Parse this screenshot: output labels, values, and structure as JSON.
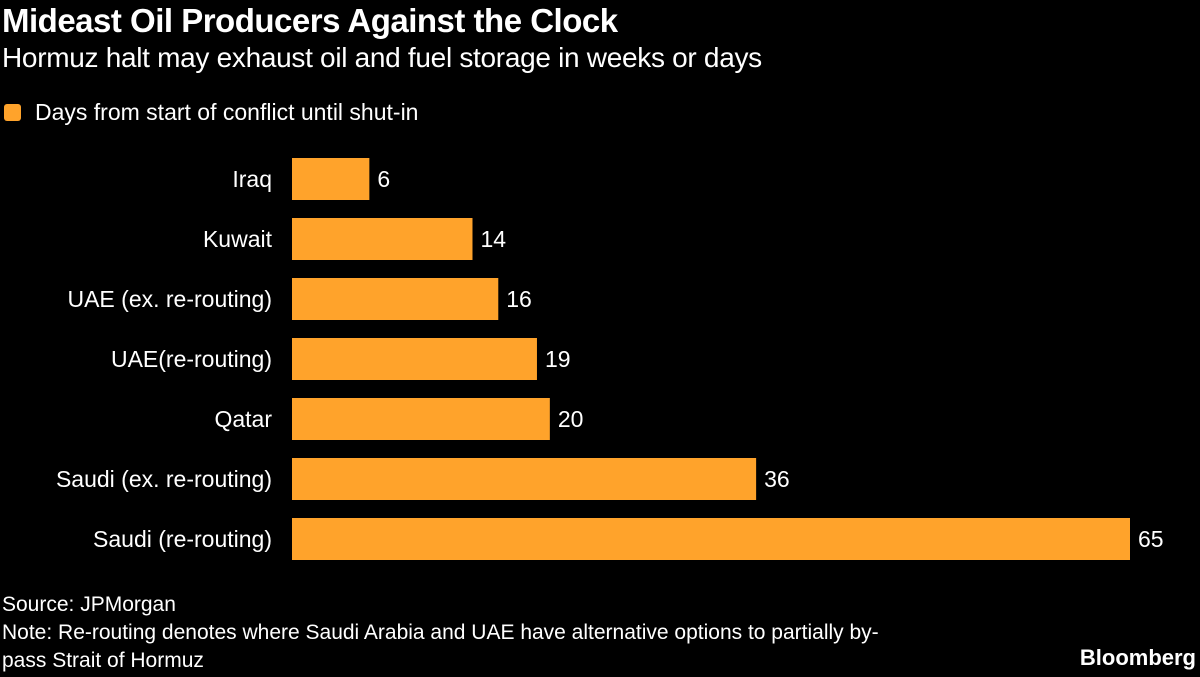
{
  "colors": {
    "bar": "#FFA32B",
    "background": "#000000",
    "text": "#FFFFFF"
  },
  "chart_data": {
    "type": "bar",
    "orientation": "horizontal",
    "title": "Mideast Oil Producers Against the Clock",
    "subtitle": "Hormuz halt may exhaust oil and fuel storage in weeks or days",
    "categories": [
      "Iraq",
      "Kuwait",
      "UAE (ex. re-routing)",
      "UAE(re-routing)",
      "Qatar",
      "Saudi (ex. re-routing)",
      "Saudi (re-routing)"
    ],
    "series": [
      {
        "name": "Days from start of conflict until shut-in",
        "values": [
          6,
          14,
          16,
          19,
          20,
          36,
          65
        ]
      }
    ],
    "xlim": [
      0,
      65
    ],
    "grid": false,
    "legend": "top-left"
  },
  "footer": {
    "source": "Source: JPMorgan",
    "note_line1": "Note: Re-routing denotes where Saudi Arabia and UAE have alternative options to partially by-",
    "note_line2": "pass Strait of Hormuz",
    "brand": "Bloomberg"
  }
}
